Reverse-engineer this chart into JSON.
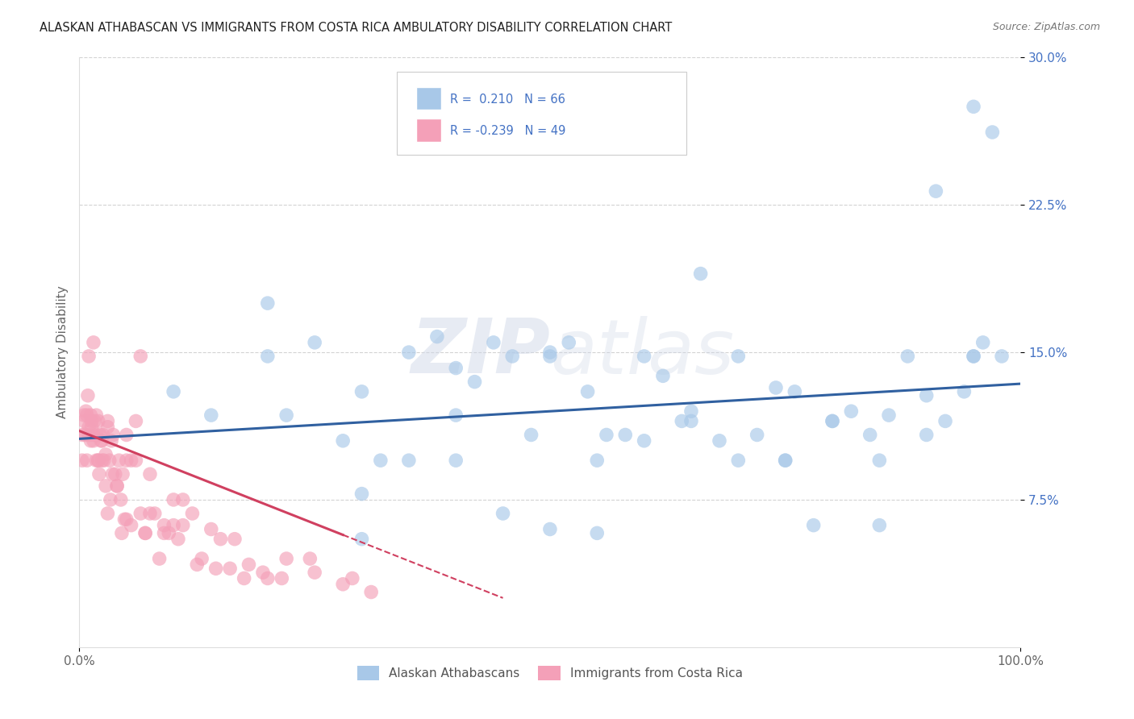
{
  "title": "ALASKAN ATHABASCAN VS IMMIGRANTS FROM COSTA RICA AMBULATORY DISABILITY CORRELATION CHART",
  "source": "Source: ZipAtlas.com",
  "ylabel": "Ambulatory Disability",
  "xlim": [
    0,
    1.0
  ],
  "ylim": [
    0,
    0.3
  ],
  "yticks": [
    0.075,
    0.15,
    0.225,
    0.3
  ],
  "ytick_labels": [
    "7.5%",
    "15.0%",
    "22.5%",
    "30.0%"
  ],
  "xticks": [
    0.0,
    1.0
  ],
  "xtick_labels": [
    "0.0%",
    "100.0%"
  ],
  "blue_color": "#a8c8e8",
  "pink_color": "#f4a0b8",
  "line_blue": "#3060a0",
  "line_pink": "#d04060",
  "watermark_color": "#d0d8e8",
  "background_color": "#ffffff",
  "blue_scatter_x": [
    0.1,
    0.14,
    0.2,
    0.22,
    0.28,
    0.3,
    0.32,
    0.35,
    0.38,
    0.4,
    0.42,
    0.44,
    0.46,
    0.48,
    0.5,
    0.52,
    0.54,
    0.56,
    0.58,
    0.6,
    0.62,
    0.64,
    0.66,
    0.68,
    0.7,
    0.72,
    0.74,
    0.76,
    0.78,
    0.8,
    0.82,
    0.84,
    0.86,
    0.88,
    0.9,
    0.91,
    0.92,
    0.94,
    0.95,
    0.96,
    0.97,
    0.98,
    0.3,
    0.4,
    0.5,
    0.55,
    0.6,
    0.65,
    0.7,
    0.75,
    0.8,
    0.85,
    0.9,
    0.95,
    0.25,
    0.35,
    0.45,
    0.55,
    0.65,
    0.75,
    0.85,
    0.95,
    0.2,
    0.3,
    0.4,
    0.5
  ],
  "blue_scatter_y": [
    0.13,
    0.118,
    0.148,
    0.118,
    0.105,
    0.13,
    0.095,
    0.15,
    0.158,
    0.142,
    0.135,
    0.155,
    0.148,
    0.108,
    0.15,
    0.155,
    0.13,
    0.108,
    0.108,
    0.148,
    0.138,
    0.115,
    0.19,
    0.105,
    0.095,
    0.108,
    0.132,
    0.13,
    0.062,
    0.115,
    0.12,
    0.108,
    0.118,
    0.148,
    0.108,
    0.232,
    0.115,
    0.13,
    0.275,
    0.155,
    0.262,
    0.148,
    0.078,
    0.118,
    0.148,
    0.058,
    0.105,
    0.12,
    0.148,
    0.095,
    0.115,
    0.095,
    0.128,
    0.148,
    0.155,
    0.095,
    0.068,
    0.095,
    0.115,
    0.095,
    0.062,
    0.148,
    0.175,
    0.055,
    0.095,
    0.06
  ],
  "pink_scatter_x": [
    0.003,
    0.005,
    0.007,
    0.008,
    0.01,
    0.012,
    0.013,
    0.015,
    0.016,
    0.018,
    0.02,
    0.022,
    0.024,
    0.026,
    0.028,
    0.03,
    0.032,
    0.034,
    0.036,
    0.038,
    0.04,
    0.042,
    0.044,
    0.046,
    0.048,
    0.05,
    0.055,
    0.06,
    0.065,
    0.07,
    0.075,
    0.08,
    0.09,
    0.1,
    0.11,
    0.12,
    0.13,
    0.14,
    0.15,
    0.165,
    0.18,
    0.2,
    0.22,
    0.25,
    0.29,
    0.003,
    0.006,
    0.009,
    0.012,
    0.015,
    0.018,
    0.021,
    0.024,
    0.01,
    0.02,
    0.03,
    0.04,
    0.05,
    0.06,
    0.075,
    0.09,
    0.11,
    0.015,
    0.025,
    0.035,
    0.05,
    0.07,
    0.1,
    0.01,
    0.02,
    0.03,
    0.005,
    0.008,
    0.013,
    0.018,
    0.023,
    0.028,
    0.033,
    0.045,
    0.055,
    0.065,
    0.085,
    0.095,
    0.105,
    0.125,
    0.145,
    0.16,
    0.175,
    0.195,
    0.215,
    0.245,
    0.28,
    0.31
  ],
  "pink_scatter_y": [
    0.108,
    0.115,
    0.12,
    0.118,
    0.112,
    0.105,
    0.115,
    0.108,
    0.115,
    0.118,
    0.095,
    0.108,
    0.105,
    0.095,
    0.098,
    0.112,
    0.095,
    0.105,
    0.108,
    0.088,
    0.082,
    0.095,
    0.075,
    0.088,
    0.065,
    0.108,
    0.095,
    0.115,
    0.148,
    0.058,
    0.088,
    0.068,
    0.062,
    0.075,
    0.062,
    0.068,
    0.045,
    0.06,
    0.055,
    0.055,
    0.042,
    0.035,
    0.045,
    0.038,
    0.035,
    0.095,
    0.108,
    0.128,
    0.118,
    0.105,
    0.108,
    0.088,
    0.095,
    0.148,
    0.115,
    0.115,
    0.082,
    0.065,
    0.095,
    0.068,
    0.058,
    0.075,
    0.155,
    0.108,
    0.088,
    0.095,
    0.058,
    0.062,
    0.108,
    0.095,
    0.068,
    0.118,
    0.095,
    0.112,
    0.095,
    0.105,
    0.082,
    0.075,
    0.058,
    0.062,
    0.068,
    0.045,
    0.058,
    0.055,
    0.042,
    0.04,
    0.04,
    0.035,
    0.038,
    0.035,
    0.045,
    0.032,
    0.028
  ]
}
